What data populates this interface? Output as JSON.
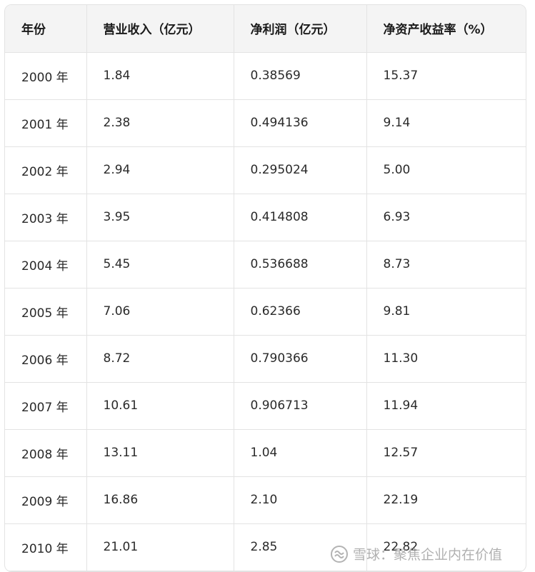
{
  "table": {
    "headers": [
      "年份",
      "营业收入（亿元）",
      "净利润（亿元）",
      "净资产收益率（%）"
    ],
    "rows": [
      [
        "2000 年",
        "1.84",
        "0.38569",
        "15.37"
      ],
      [
        "2001 年",
        "2.38",
        "0.494136",
        "9.14"
      ],
      [
        "2002 年",
        "2.94",
        "0.295024",
        "5.00"
      ],
      [
        "2003 年",
        "3.95",
        "0.414808",
        "6.93"
      ],
      [
        "2004 年",
        "5.45",
        "0.536688",
        "8.73"
      ],
      [
        "2005 年",
        "7.06",
        "0.62366",
        "9.81"
      ],
      [
        "2006 年",
        "8.72",
        "0.790366",
        "11.30"
      ],
      [
        "2007 年",
        "10.61",
        "0.906713",
        "11.94"
      ],
      [
        "2008 年",
        "13.11",
        "1.04",
        "12.57"
      ],
      [
        "2009 年",
        "16.86",
        "2.10",
        "22.19"
      ],
      [
        "2010 年",
        "21.01",
        "2.85",
        "22.82"
      ]
    ]
  },
  "watermark": {
    "text": "雪球：聚焦企业内在价值",
    "icon": "snowball-logo-icon"
  }
}
